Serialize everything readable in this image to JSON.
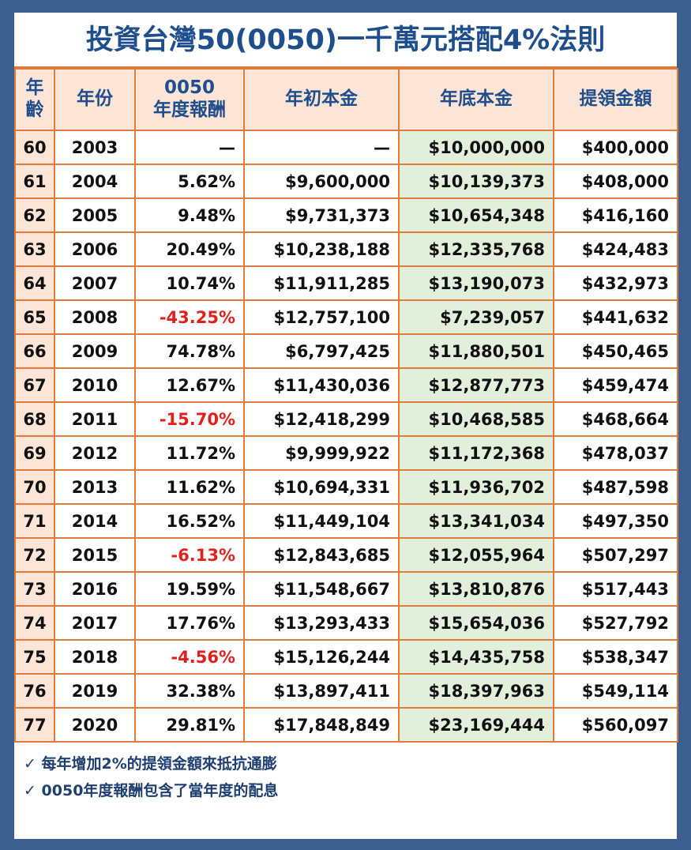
{
  "header": {
    "title": "投資台灣50(0050)一千萬元搭配4%法則"
  },
  "table": {
    "columns": [
      [
        "年",
        "齡"
      ],
      [
        "年份"
      ],
      [
        "0050",
        "年度報酬"
      ],
      [
        "年初本金"
      ],
      [
        "年底本金"
      ],
      [
        "提領金額"
      ]
    ],
    "rows": [
      [
        "60",
        "2003",
        "—",
        "—",
        "$10,000,000",
        "$400,000"
      ],
      [
        "61",
        "2004",
        "5.62%",
        "$9,600,000",
        "$10,139,373",
        "$408,000"
      ],
      [
        "62",
        "2005",
        "9.48%",
        "$9,731,373",
        "$10,654,348",
        "$416,160"
      ],
      [
        "63",
        "2006",
        "20.49%",
        "$10,238,188",
        "$12,335,768",
        "$424,483"
      ],
      [
        "64",
        "2007",
        "10.74%",
        "$11,911,285",
        "$13,190,073",
        "$432,973"
      ],
      [
        "65",
        "2008",
        "-43.25%",
        "$12,757,100",
        "$7,239,057",
        "$441,632"
      ],
      [
        "66",
        "2009",
        "74.78%",
        "$6,797,425",
        "$11,880,501",
        "$450,465"
      ],
      [
        "67",
        "2010",
        "12.67%",
        "$11,430,036",
        "$12,877,773",
        "$459,474"
      ],
      [
        "68",
        "2011",
        "-15.70%",
        "$12,418,299",
        "$10,468,585",
        "$468,664"
      ],
      [
        "69",
        "2012",
        "11.72%",
        "$9,999,922",
        "$11,172,368",
        "$478,037"
      ],
      [
        "70",
        "2013",
        "11.62%",
        "$10,694,331",
        "$11,936,702",
        "$487,598"
      ],
      [
        "71",
        "2014",
        "16.52%",
        "$11,449,104",
        "$13,341,034",
        "$497,350"
      ],
      [
        "72",
        "2015",
        "-6.13%",
        "$12,843,685",
        "$12,055,964",
        "$507,297"
      ],
      [
        "73",
        "2016",
        "19.59%",
        "$11,548,667",
        "$13,810,876",
        "$517,443"
      ],
      [
        "74",
        "2017",
        "17.76%",
        "$13,293,433",
        "$15,654,036",
        "$527,792"
      ],
      [
        "75",
        "2018",
        "-4.56%",
        "$15,126,244",
        "$14,435,758",
        "$538,347"
      ],
      [
        "76",
        "2019",
        "32.38%",
        "$13,897,411",
        "$18,397,963",
        "$549,114"
      ],
      [
        "77",
        "2020",
        "29.81%",
        "$17,848,849",
        "$23,169,444",
        "$560,097"
      ]
    ]
  },
  "notes": [
    "✓ 每年增加2%的提領金額來抵抗通膨",
    "✓ 0050年度報酬包含了當年度的配息"
  ]
}
